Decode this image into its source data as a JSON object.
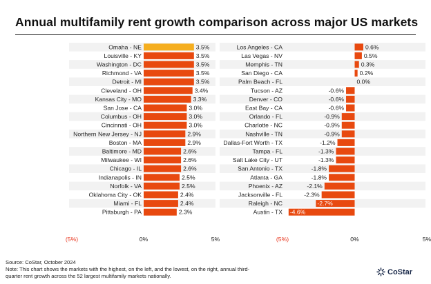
{
  "title": "Annual multifamily rent growth comparison across major US markets",
  "footer": {
    "source": "Source: CoStar, October 2024",
    "note_line1": "Note: This chart shows the markets with the highest, on the left, and the lowest, on the right, annual third-",
    "note_line2": "quarter rent growth across the 52 largest multifamily markets nationally.",
    "logo_text": "CoStar",
    "logo_icon": "costar-starburst-icon"
  },
  "colors": {
    "bar": "#e8490f",
    "highlight": "#f5ae1f",
    "band": "#f2f2f2",
    "negative_tick": "#e8341c"
  },
  "chart_data": [
    {
      "type": "bar",
      "orientation": "horizontal",
      "x_ticks": [
        "(5%)",
        "0%",
        "5%"
      ],
      "xlim": [
        -5,
        5
      ],
      "highlight_index": 0,
      "categories": [
        "Omaha - NE",
        "Louisville - KY",
        "Washington - DC",
        "Richmond - VA",
        "Detroit - MI",
        "Cleveland - OH",
        "Kansas City - MO",
        "San Jose - CA",
        "Columbus - OH",
        "Cincinnati - OH",
        "Northern New Jersey - NJ",
        "Boston - MA",
        "Baltimore - MD",
        "Milwaukee - WI",
        "Chicago - IL",
        "Indianapolis - IN",
        "Norfolk - VA",
        "Oklahoma City - OK",
        "Miami - FL",
        "Pittsburgh - PA"
      ],
      "values": [
        3.5,
        3.5,
        3.5,
        3.5,
        3.5,
        3.4,
        3.3,
        3.0,
        3.0,
        3.0,
        2.9,
        2.9,
        2.6,
        2.6,
        2.6,
        2.5,
        2.5,
        2.4,
        2.4,
        2.3
      ],
      "value_labels": [
        "3.5%",
        "3.5%",
        "3.5%",
        "3.5%",
        "3.5%",
        "3.4%",
        "3.3%",
        "3.0%",
        "3.0%",
        "3.0%",
        "2.9%",
        "2.9%",
        "2.6%",
        "2.6%",
        "2.6%",
        "2.5%",
        "2.5%",
        "2.4%",
        "2.4%",
        "2.3%"
      ]
    },
    {
      "type": "bar",
      "orientation": "horizontal",
      "x_ticks": [
        "(5%)",
        "0%",
        "5%"
      ],
      "xlim": [
        -5,
        5
      ],
      "categories": [
        "Los Angeles - CA",
        "Las Vegas - NV",
        "Memphis - TN",
        "San Diego - CA",
        "Palm Beach - FL",
        "Tucson - AZ",
        "Denver - CO",
        "East Bay - CA",
        "Orlando - FL",
        "Charlotte - NC",
        "Nashville - TN",
        "Dallas-Fort Worth - TX",
        "Tampa - FL",
        "Salt Lake City - UT",
        "San Antonio - TX",
        "Atlanta - GA",
        "Phoenix - AZ",
        "Jacksonville - FL",
        "Raleigh - NC",
        "Austin - TX"
      ],
      "values": [
        0.6,
        0.5,
        0.3,
        0.2,
        0.0,
        -0.6,
        -0.6,
        -0.6,
        -0.9,
        -0.9,
        -0.9,
        -1.2,
        -1.3,
        -1.3,
        -1.8,
        -1.8,
        -2.1,
        -2.3,
        -2.7,
        -4.6
      ],
      "value_labels": [
        "0.6%",
        "0.5%",
        "0.3%",
        "0.2%",
        "0.0%",
        "-0.6%",
        "-0.6%",
        "-0.6%",
        "-0.9%",
        "-0.9%",
        "-0.9%",
        "-1.2%",
        "-1.3%",
        "-1.3%",
        "-1.8%",
        "-1.8%",
        "-2.1%",
        "-2.3%",
        "-2.7%",
        "-4.6%"
      ]
    }
  ]
}
